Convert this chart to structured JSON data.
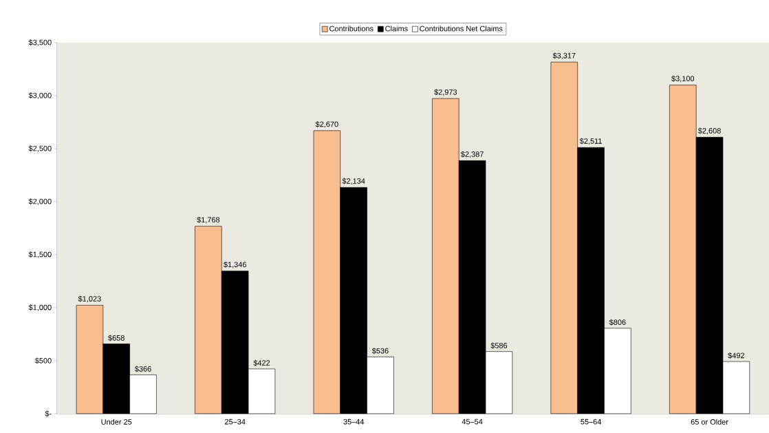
{
  "chart_data": {
    "type": "bar",
    "categories": [
      "Under 25",
      "25–34",
      "35–44",
      "45–54",
      "55–64",
      "65 or Older"
    ],
    "series": [
      {
        "name": "Contributions",
        "color": "#f9be8f",
        "values": [
          1023,
          1768,
          2670,
          2973,
          3317,
          3100
        ],
        "value_labels": [
          "$1,023",
          "$1,768",
          "$2,670",
          "$2,973",
          "$3,317",
          "$3,100"
        ]
      },
      {
        "name": "Claims",
        "color": "#000000",
        "values": [
          658,
          1346,
          2134,
          2387,
          2511,
          2608
        ],
        "value_labels": [
          "$658",
          "$1,346",
          "$2,134",
          "$2,387",
          "$2,511",
          "$2,608"
        ]
      },
      {
        "name": "Contributions Net Claims",
        "color": "#ffffff",
        "values": [
          366,
          422,
          536,
          586,
          806,
          492
        ],
        "value_labels": [
          "$366",
          "$422",
          "$536",
          "$586",
          "$806",
          "$492"
        ]
      }
    ],
    "ylim": [
      0,
      3500
    ],
    "yticks": [
      {
        "value": 0,
        "label": "$-"
      },
      {
        "value": 500,
        "label": "$500"
      },
      {
        "value": 1000,
        "label": "$1,000"
      },
      {
        "value": 1500,
        "label": "$1,500"
      },
      {
        "value": 2000,
        "label": "$2,000"
      },
      {
        "value": 2500,
        "label": "$2,500"
      },
      {
        "value": 3000,
        "label": "$3,000"
      },
      {
        "value": 3500,
        "label": "$3,500"
      }
    ],
    "legend": "top",
    "grid": false
  }
}
